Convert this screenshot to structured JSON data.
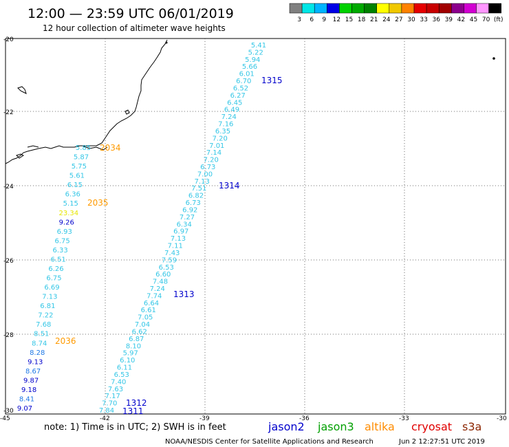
{
  "header": {
    "title": "12:00 — 23:59 UTC 06/01/2019",
    "subtitle": "12 hour collection of altimeter wave heights"
  },
  "legend": {
    "colors": [
      "#808080",
      "#00e6e6",
      "#00b4ff",
      "#0000e6",
      "#00d200",
      "#00aa00",
      "#008200",
      "#ffff00",
      "#f0c800",
      "#ff8200",
      "#e60000",
      "#c80000",
      "#a00000",
      "#8c008c",
      "#d200d2",
      "#ff96ff",
      "#000000"
    ],
    "labels": [
      "3",
      "6",
      "9",
      "12",
      "15",
      "18",
      "21",
      "24",
      "27",
      "30",
      "33",
      "36",
      "39",
      "42",
      "45",
      "70",
      "(ft)"
    ]
  },
  "axes": {
    "lat_labels": [
      "-20",
      "-22",
      "-24",
      "-26",
      "-28",
      "-30"
    ],
    "lon_labels": [
      "-45",
      "-42",
      "-39",
      "-36",
      "-33",
      "-30"
    ]
  },
  "tracks": {
    "track_a": {
      "color": "#33c6e6",
      "values": [
        "5.41",
        "5.22",
        "5.94",
        "5.66",
        "6.01",
        "6.70",
        "6.52",
        "6.27",
        "6.45",
        "6.49",
        "7.24",
        "7.16",
        "6.35",
        "7.20",
        "7.01",
        "7.14",
        "7.20",
        "6.73",
        "7.00",
        "7.13",
        "7.51",
        "6.82",
        "6.73",
        "6.92",
        "7.27",
        "6.34",
        "6.97",
        "7.13",
        "7.11",
        "7.43",
        "7.59",
        "6.53",
        "6.60",
        "7.48",
        "7.24",
        "7.74",
        "6.64",
        "6.61",
        "7.05",
        "7.04",
        "6.62",
        "6.87",
        "8.10",
        "5.97",
        "6.10",
        "6.11",
        "6.53",
        "7.40",
        "7.63",
        "7.17",
        "7.70",
        "7.84"
      ],
      "time_labels": [
        "1315",
        "1314",
        "1313",
        "1312",
        "1311"
      ]
    },
    "track_b": {
      "values": [
        "5.85",
        "5.87",
        "5.75",
        "5.61",
        "6.15",
        "6.36",
        "5.15",
        "23.34",
        "9.26",
        "6.93",
        "6.75",
        "6.33",
        "6.51",
        "6.26",
        "6.75",
        "6.69",
        "7.13",
        "6.81",
        "7.22",
        "7.68",
        "8.51",
        "8.74",
        "8.28",
        "9.13",
        "8.67",
        "9.87",
        "9.18",
        "8.41",
        "9.07"
      ],
      "value_colors": [
        "#33c6e6",
        "#33c6e6",
        "#33c6e6",
        "#33c6e6",
        "#33c6e6",
        "#33c6e6",
        "#33c6e6",
        "#e6e600",
        "#0000cc",
        "#33c6e6",
        "#33c6e6",
        "#33c6e6",
        "#33c6e6",
        "#33c6e6",
        "#33c6e6",
        "#33c6e6",
        "#33c6e6",
        "#33c6e6",
        "#33c6e6",
        "#33c6e6",
        "#33c6e6",
        "#33c6e6",
        "#1e78e6",
        "#0000cc",
        "#1e78e6",
        "#0000cc",
        "#0000cc",
        "#1e78e6",
        "#0000cc"
      ],
      "time_labels": [
        "2034",
        "2035",
        "2036"
      ]
    }
  },
  "footer": {
    "note": "note:  1)  Time is in UTC;  2)  SWH is in feet",
    "satellites": [
      {
        "name": "jason2",
        "color": "#0000cc"
      },
      {
        "name": "jason3",
        "color": "#00a000"
      },
      {
        "name": "altika",
        "color": "#ff8c00"
      },
      {
        "name": "cryosat",
        "color": "#e00000"
      },
      {
        "name": "s3a",
        "color": "#8b2500"
      }
    ],
    "credit": "NOAA/NESDIS Center for Satellite Applications and Research",
    "timestamp": "Jun  2 12:27:51 UTC 2019"
  }
}
